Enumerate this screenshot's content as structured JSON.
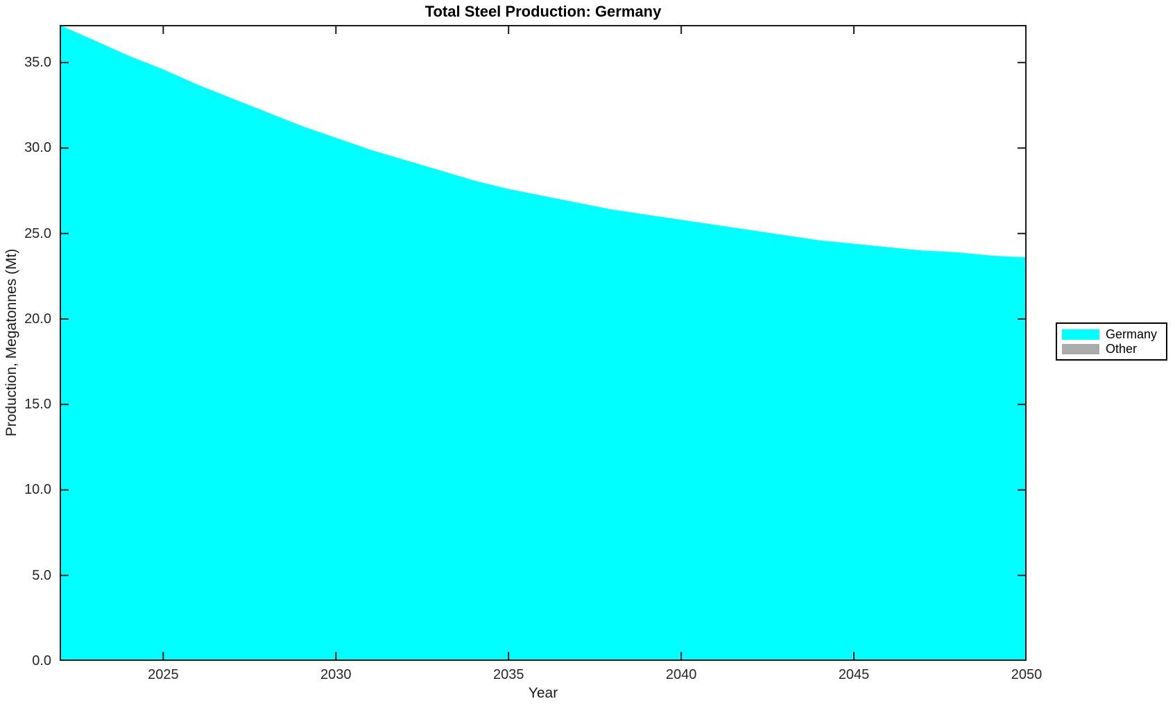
{
  "chart_data": {
    "type": "area",
    "title": "Total Steel Production: Germany",
    "xlabel": "Year",
    "ylabel": "Production, Megatonnes (Mt)",
    "x": [
      2022,
      2023,
      2024,
      2025,
      2026,
      2027,
      2028,
      2029,
      2030,
      2031,
      2032,
      2033,
      2034,
      2035,
      2036,
      2037,
      2038,
      2039,
      2040,
      2041,
      2042,
      2043,
      2044,
      2045,
      2046,
      2047,
      2048,
      2049,
      2050
    ],
    "series": [
      {
        "name": "Germany",
        "color": "#00ffff",
        "values": [
          37.2,
          36.3,
          35.4,
          34.6,
          33.7,
          32.9,
          32.1,
          31.3,
          30.6,
          29.9,
          29.3,
          28.7,
          28.1,
          27.6,
          27.2,
          26.8,
          26.4,
          26.1,
          25.8,
          25.5,
          25.2,
          24.9,
          24.6,
          24.4,
          24.2,
          24.0,
          23.9,
          23.7,
          23.6
        ]
      },
      {
        "name": "Other",
        "color": "#ababab",
        "values": [
          0,
          0,
          0,
          0,
          0,
          0,
          0,
          0,
          0,
          0,
          0,
          0,
          0,
          0,
          0,
          0,
          0,
          0,
          0,
          0,
          0,
          0,
          0,
          0,
          0,
          0,
          0,
          0,
          0
        ]
      }
    ],
    "xlim": [
      2022,
      2050
    ],
    "ylim": [
      0,
      37.2
    ],
    "xticks": [
      2025,
      2030,
      2035,
      2040,
      2045,
      2050
    ],
    "xtick_labels": [
      "2025",
      "2030",
      "2035",
      "2040",
      "2045",
      "2050"
    ],
    "yticks": [
      0,
      5,
      10,
      15,
      20,
      25,
      30,
      35
    ],
    "ytick_labels": [
      "0.0",
      "5.0",
      "10.0",
      "15.0",
      "20.0",
      "25.0",
      "30.0",
      "35.0"
    ],
    "grid": false,
    "legend_position": "right-outside",
    "colors": {
      "background": "#ffffff",
      "axis": "#1a1a1a",
      "tick_text": "#262626"
    }
  }
}
